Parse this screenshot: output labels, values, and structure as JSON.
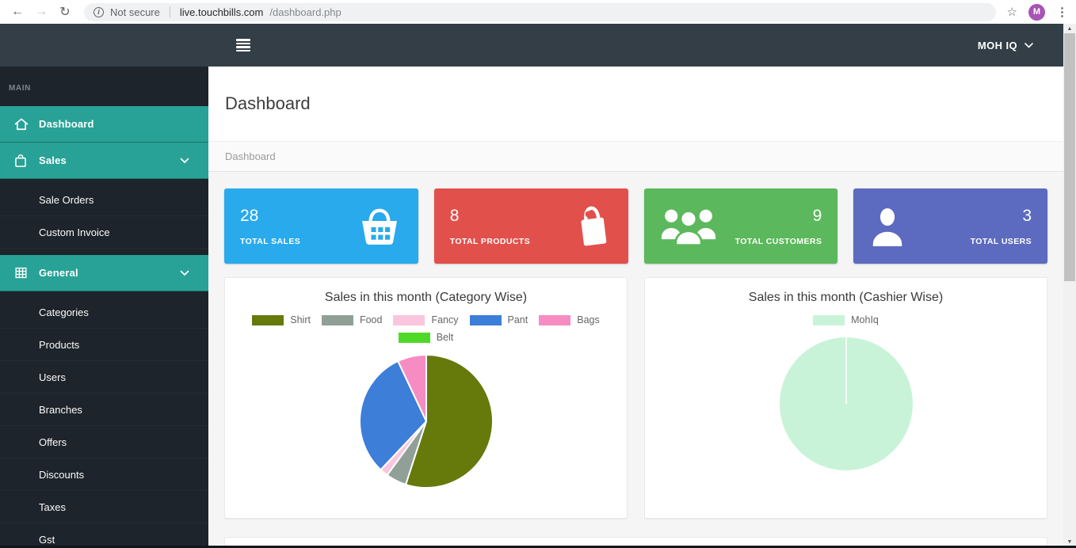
{
  "browser": {
    "security_label": "Not secure",
    "url_domain": "live.touchbills.com",
    "url_path": "/dashboard.php",
    "avatar_letter": "M"
  },
  "navbar": {
    "user_menu_label": "MOH IQ"
  },
  "sidebar": {
    "section_label": "MAIN",
    "items": [
      {
        "label": "Dashboard",
        "type": "main",
        "icon": "home-icon",
        "active": true,
        "expanded": false
      },
      {
        "label": "Sales",
        "type": "main",
        "icon": "sales-bag-icon",
        "active": true,
        "expanded": true
      },
      {
        "label": "Sale Orders",
        "type": "sub"
      },
      {
        "label": "Custom Invoice",
        "type": "sub"
      },
      {
        "label": "General",
        "type": "main",
        "icon": "grid-icon",
        "active": true,
        "expanded": true
      },
      {
        "label": "Categories",
        "type": "sub"
      },
      {
        "label": "Products",
        "type": "sub"
      },
      {
        "label": "Users",
        "type": "sub"
      },
      {
        "label": "Branches",
        "type": "sub"
      },
      {
        "label": "Offers",
        "type": "sub"
      },
      {
        "label": "Discounts",
        "type": "sub"
      },
      {
        "label": "Taxes",
        "type": "sub"
      },
      {
        "label": "Gst",
        "type": "sub"
      }
    ]
  },
  "page": {
    "title": "Dashboard",
    "breadcrumb": "Dashboard"
  },
  "stats": [
    {
      "value": "28",
      "label": "TOTAL SALES",
      "color": "#29aaec",
      "icon": "basket-icon",
      "icon_side": "right"
    },
    {
      "value": "8",
      "label": "TOTAL PRODUCTS",
      "color": "#e2504c",
      "icon": "shopping-bag-icon",
      "icon_side": "right"
    },
    {
      "value": "9",
      "label": "TOTAL CUSTOMERS",
      "color": "#5cb85c",
      "icon": "customers-group-icon",
      "icon_side": "left"
    },
    {
      "value": "3",
      "label": "TOTAL USERS",
      "color": "#5c6bc0",
      "icon": "user-icon",
      "icon_side": "left"
    }
  ],
  "chart_data": [
    {
      "type": "pie",
      "title": "Sales in this month (Category Wise)",
      "labels": [
        "Shirt",
        "Food",
        "Fancy",
        "Pant",
        "Bags",
        "Belt"
      ],
      "values": [
        55,
        5,
        2,
        31,
        7,
        0
      ],
      "colors": [
        "#66790b",
        "#91a096",
        "#f9c6de",
        "#3c7ed8",
        "#f78cc3",
        "#4fd927"
      ],
      "unit": "percent-of-pie (estimated from slice angles)",
      "legend_position": "top"
    },
    {
      "type": "pie",
      "title": "Sales in this month (Cashier Wise)",
      "labels": [
        "MohIq"
      ],
      "values": [
        100
      ],
      "colors": [
        "#c9f3d8"
      ],
      "unit": "percent-of-pie",
      "legend_position": "top"
    }
  ]
}
